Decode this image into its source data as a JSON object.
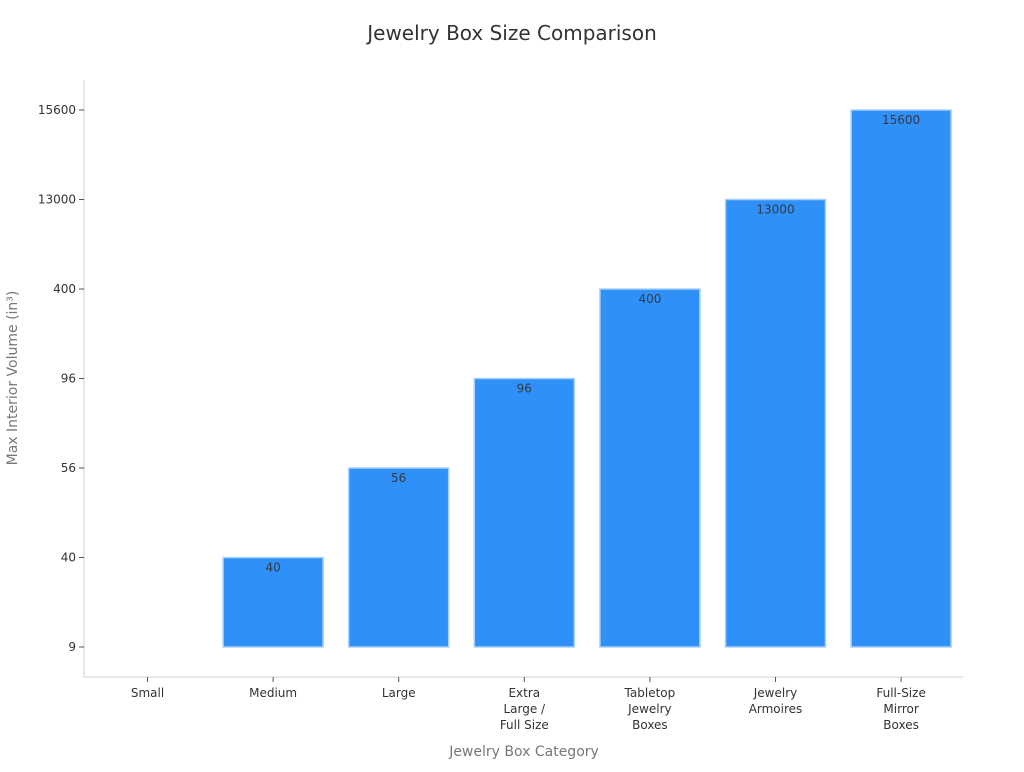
{
  "chart_data": {
    "type": "bar",
    "title": "Jewelry Box Size Comparison",
    "xlabel": "Jewelry Box Category",
    "ylabel": "Max Interior Volume (in³)",
    "categories": [
      [
        "Small"
      ],
      [
        "Medium"
      ],
      [
        "Large"
      ],
      [
        "Extra",
        "Large /",
        "Full Size"
      ],
      [
        "Tabletop",
        "Jewelry",
        "Boxes"
      ],
      [
        "Jewelry",
        "Armoires"
      ],
      [
        "Full-Size",
        "Mirror",
        "Boxes"
      ]
    ],
    "category_names": [
      "Small",
      "Medium",
      "Large",
      "Extra Large / Full Size",
      "Tabletop Jewelry Boxes",
      "Jewelry Armoires",
      "Full-Size Mirror Boxes"
    ],
    "values": [
      9,
      40,
      56,
      96,
      400,
      13000,
      15600
    ],
    "y_ticks": [
      "9",
      "40",
      "56",
      "96",
      "400",
      "13000",
      "15600"
    ],
    "y_scale": "categorical (ordinal tick spacing)",
    "grid": false,
    "legend": null,
    "bar_color": "#2f91f7",
    "bar_edge_color": "#a9d0fb"
  }
}
